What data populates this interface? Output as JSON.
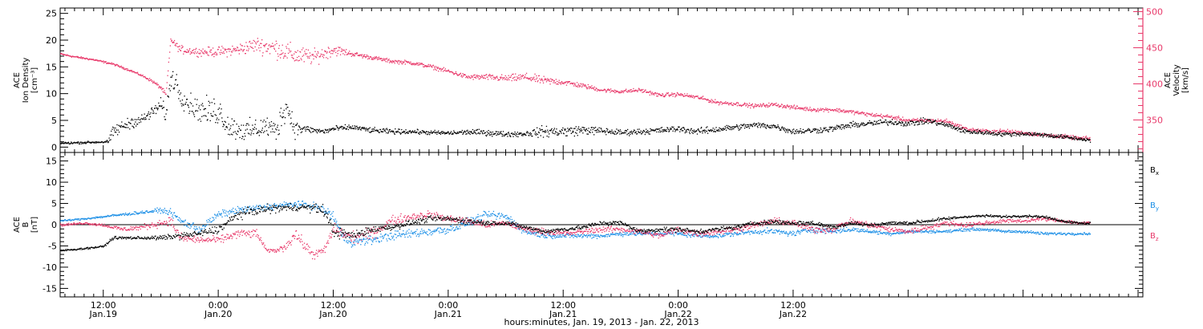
{
  "colors": {
    "density": "#000000",
    "velocity": "#e8396a",
    "bx": "#000000",
    "by": "#1a8ee6",
    "bz": "#e8396a"
  },
  "chart_data": [
    {
      "type": "scatter",
      "panel": "top",
      "ylabel": [
        "ACE",
        "Ion Density",
        "[cm⁻³]"
      ],
      "ylim": [
        -1,
        26
      ],
      "yticks": [
        0,
        5,
        10,
        15,
        20,
        25
      ],
      "ytick_labels": [
        "0",
        "5",
        "10",
        "15",
        "20",
        "25"
      ],
      "y2label": [
        "ACE",
        "Velocity",
        "[km/s]"
      ],
      "y2lim": [
        305,
        505
      ],
      "y2ticks": [
        350,
        400,
        450,
        500
      ],
      "y2tick_labels": [
        "350",
        "400",
        "450",
        "500"
      ],
      "series": [
        {
          "key": "density",
          "axis": "left",
          "x": [
            7.5,
            9,
            11,
            12.5,
            13,
            14,
            15,
            16,
            17,
            18,
            18.5,
            19,
            19.5,
            20,
            21,
            22,
            23,
            24,
            25,
            26,
            27,
            28,
            29,
            30,
            31,
            32,
            33,
            34,
            35,
            36,
            38,
            40,
            42,
            44,
            46,
            48,
            50,
            52,
            54,
            56,
            58,
            60,
            62,
            64,
            66,
            68,
            70,
            72,
            74,
            76,
            78,
            80,
            82,
            84,
            86,
            88,
            90,
            92,
            94,
            96,
            98,
            100,
            102,
            104,
            106,
            108,
            110,
            112,
            114,
            115
          ],
          "y": [
            0.8,
            0.9,
            1.0,
            1.1,
            3.0,
            4.0,
            4.8,
            5.2,
            6.5,
            8.0,
            6.0,
            13.0,
            12.5,
            10.0,
            8.0,
            7.0,
            6.5,
            7.0,
            4.0,
            3.5,
            3.0,
            3.5,
            4.0,
            3.0,
            8.0,
            3.5,
            3.5,
            3.2,
            3.0,
            3.5,
            3.8,
            3.2,
            3.0,
            3.0,
            2.8,
            2.7,
            2.9,
            2.8,
            2.5,
            2.6,
            3.0,
            3.0,
            3.3,
            3.1,
            2.8,
            3.0,
            3.2,
            3.5,
            3.0,
            3.4,
            3.8,
            4.2,
            4.0,
            3.0,
            3.2,
            3.5,
            4.2,
            4.5,
            4.8,
            4.5,
            5.0,
            4.2,
            3.0,
            2.8,
            2.5,
            2.6,
            2.4,
            2.0,
            1.6,
            1.4
          ],
          "spread": [
            0.3,
            0.3,
            0.3,
            0.4,
            2.0,
            1.5,
            1.5,
            1.5,
            1.5,
            2.0,
            2.0,
            3.0,
            3.0,
            3.0,
            3.0,
            3.0,
            4.0,
            4.0,
            3.0,
            3.0,
            3.0,
            3.0,
            3.0,
            3.0,
            4.0,
            2.5,
            1.0,
            0.8,
            0.8,
            0.8,
            0.7,
            0.7,
            0.7,
            0.6,
            0.6,
            0.6,
            0.7,
            0.8,
            0.7,
            0.8,
            1.5,
            1.5,
            1.2,
            1.0,
            0.8,
            0.8,
            0.8,
            0.8,
            0.9,
            0.9,
            0.8,
            0.8,
            0.8,
            0.8,
            0.8,
            0.8,
            0.8,
            0.8,
            0.8,
            0.8,
            0.8,
            0.7,
            0.7,
            0.6,
            0.6,
            0.6,
            0.6,
            0.6,
            0.5,
            0.5
          ]
        },
        {
          "key": "velocity",
          "axis": "right",
          "x": [
            7.5,
            9,
            11,
            13,
            14,
            15,
            16,
            17,
            18,
            18.5,
            19,
            20,
            22,
            24,
            26,
            28,
            30,
            32,
            34,
            36,
            37,
            38,
            40,
            42,
            44,
            46,
            48,
            50,
            52,
            54,
            56,
            58,
            60,
            62,
            64,
            66,
            68,
            70,
            72,
            74,
            76,
            78,
            80,
            82,
            84,
            86,
            88,
            90,
            92,
            94,
            96,
            98,
            100,
            102,
            104,
            106,
            108,
            110,
            112,
            114,
            115
          ],
          "y": [
            442,
            438,
            434,
            428,
            423,
            418,
            412,
            405,
            395,
            385,
            462,
            448,
            445,
            445,
            448,
            455,
            450,
            440,
            438,
            448,
            445,
            442,
            437,
            432,
            430,
            425,
            418,
            410,
            410,
            408,
            410,
            405,
            403,
            398,
            392,
            390,
            392,
            385,
            386,
            382,
            375,
            373,
            370,
            372,
            368,
            365,
            365,
            362,
            358,
            355,
            350,
            350,
            349,
            338,
            335,
            335,
            333,
            330,
            328,
            325,
            325
          ],
          "spread": [
            2,
            2,
            2,
            2,
            2,
            2,
            2,
            3,
            4,
            5,
            5,
            8,
            8,
            10,
            12,
            15,
            20,
            20,
            15,
            12,
            8,
            5,
            4,
            4,
            4,
            4,
            4,
            5,
            6,
            7,
            8,
            8,
            6,
            5,
            4,
            4,
            4,
            4,
            4,
            4,
            4,
            4,
            4,
            4,
            4,
            4,
            4,
            4,
            4,
            4,
            4,
            4,
            4,
            4,
            4,
            4,
            4,
            4,
            4,
            4,
            4
          ]
        }
      ]
    },
    {
      "type": "scatter",
      "panel": "bottom",
      "ylabel": [
        "ACE",
        "B",
        "[nT]"
      ],
      "ylim": [
        -17,
        17
      ],
      "yticks": [
        -15,
        -10,
        -5,
        0,
        5,
        10,
        15
      ],
      "ytick_labels": [
        "-15",
        "-10",
        "-5",
        "0",
        "5",
        "10",
        "15"
      ],
      "zero_line": true,
      "series": [
        {
          "key": "bx",
          "name": "B",
          "sub": "x",
          "x": [
            7.5,
            10,
            12,
            13,
            14,
            16,
            18,
            20,
            22,
            24,
            26,
            28,
            30,
            32,
            33,
            34,
            35,
            36,
            38,
            40,
            42,
            44,
            46,
            48,
            50,
            52,
            54,
            56,
            58,
            60,
            62,
            64,
            66,
            68,
            70,
            72,
            74,
            76,
            78,
            80,
            82,
            84,
            86,
            88,
            90,
            92,
            94,
            96,
            98,
            100,
            102,
            104,
            106,
            108,
            110,
            112,
            114,
            115
          ],
          "y": [
            -6,
            -5.5,
            -5,
            -3,
            -3,
            -3,
            -3,
            -2.5,
            -2,
            -1,
            2.5,
            3.5,
            4.0,
            4.2,
            4.2,
            4.0,
            3.5,
            -1.5,
            -2.5,
            -1.0,
            -0.5,
            0.5,
            1.5,
            1.5,
            1.0,
            0.5,
            0.5,
            -0.5,
            -1.5,
            -1.0,
            -0.5,
            0.5,
            0.5,
            -1.5,
            -1.0,
            -1.0,
            -1.5,
            -1.0,
            -0.5,
            0.5,
            0.8,
            0.5,
            0.5,
            -0.5,
            0.5,
            0.0,
            0.5,
            0.5,
            1.0,
            1.5,
            2.0,
            2.2,
            2.0,
            2.2,
            2.0,
            1.0,
            0.5,
            0.5
          ],
          "spread": [
            0.3,
            0.3,
            0.3,
            0.5,
            0.5,
            0.5,
            0.8,
            1.0,
            1.0,
            1.5,
            1.5,
            1.5,
            1.5,
            1.2,
            1.2,
            1.5,
            2.0,
            2.0,
            1.5,
            1.2,
            1.0,
            1.0,
            1.0,
            1.0,
            1.0,
            0.8,
            0.8,
            0.8,
            0.8,
            0.8,
            0.8,
            0.8,
            0.8,
            0.8,
            0.8,
            0.8,
            0.8,
            0.8,
            0.8,
            0.8,
            0.8,
            0.8,
            0.8,
            0.8,
            0.8,
            0.6,
            0.6,
            0.6,
            0.6,
            0.6,
            0.4,
            0.4,
            0.4,
            0.4,
            0.4,
            0.4,
            0.4,
            0.4
          ]
        },
        {
          "key": "by",
          "name": "B",
          "sub": "y",
          "x": [
            7.5,
            10,
            12,
            14,
            16,
            18,
            19,
            20,
            22,
            24,
            26,
            28,
            30,
            32,
            34,
            35,
            36,
            37,
            38,
            40,
            42,
            44,
            46,
            48,
            50,
            52,
            54,
            56,
            58,
            60,
            62,
            64,
            66,
            68,
            70,
            72,
            74,
            76,
            78,
            80,
            82,
            84,
            86,
            88,
            90,
            92,
            94,
            96,
            98,
            100,
            102,
            104,
            106,
            108,
            110,
            112,
            114,
            115
          ],
          "y": [
            1.0,
            1.5,
            2.0,
            2.5,
            3.0,
            3.5,
            3.0,
            1.0,
            -1.0,
            2.5,
            3.5,
            4.0,
            4.5,
            5.0,
            4.5,
            3.5,
            2.0,
            -3.0,
            -4.0,
            -3.5,
            -2.5,
            -2.0,
            -1.5,
            -1.0,
            0.5,
            2.5,
            2.0,
            -1.5,
            -2.5,
            -2.5,
            -2.5,
            -2.5,
            -2.0,
            -2.0,
            -2.0,
            -2.0,
            -2.5,
            -2.5,
            -2.0,
            -1.5,
            -1.5,
            -2.0,
            -1.0,
            -1.5,
            -1.0,
            -1.5,
            -2.0,
            -1.5,
            -1.5,
            -1.5,
            -1.0,
            -1.0,
            -1.5,
            -1.5,
            -2.0,
            -2.0,
            -2.0,
            -2.0
          ],
          "spread": [
            0.3,
            0.3,
            0.4,
            0.5,
            0.5,
            0.8,
            1.0,
            1.5,
            1.5,
            1.2,
            1.2,
            1.2,
            1.2,
            1.0,
            1.2,
            1.5,
            2.0,
            2.0,
            1.5,
            1.5,
            1.5,
            1.5,
            1.5,
            1.5,
            1.5,
            1.2,
            1.5,
            1.2,
            0.8,
            0.8,
            0.8,
            0.8,
            0.8,
            0.8,
            0.8,
            0.8,
            0.8,
            0.8,
            0.8,
            0.8,
            1.0,
            1.0,
            1.0,
            0.8,
            0.8,
            0.6,
            0.6,
            0.6,
            0.5,
            0.5,
            0.5,
            0.5,
            0.5,
            0.5,
            0.5,
            0.5,
            0.4,
            0.4
          ]
        },
        {
          "key": "bz",
          "name": "B",
          "sub": "z",
          "x": [
            7.5,
            10,
            12,
            14,
            16,
            18,
            19,
            20,
            22,
            24,
            26,
            28,
            29,
            30,
            31,
            32,
            33,
            34,
            35,
            36,
            38,
            40,
            42,
            44,
            46,
            48,
            50,
            52,
            54,
            56,
            58,
            60,
            62,
            64,
            66,
            68,
            70,
            72,
            74,
            76,
            78,
            80,
            82,
            84,
            86,
            88,
            90,
            92,
            94,
            96,
            98,
            100,
            102,
            104,
            106,
            108,
            110,
            112,
            114,
            115
          ],
          "y": [
            0.0,
            0.5,
            0.0,
            -1.0,
            -0.5,
            0.5,
            1.0,
            -3.0,
            -3.5,
            -3.5,
            -2.0,
            -2.0,
            -6.0,
            -6.0,
            -5.0,
            -2.0,
            -5.0,
            -7.0,
            -6.0,
            -1.0,
            -3.0,
            -2.0,
            1.0,
            2.0,
            2.5,
            1.5,
            1.0,
            0.0,
            0.5,
            -1.0,
            -1.5,
            -2.0,
            -1.5,
            -1.0,
            -1.0,
            -1.5,
            -2.5,
            -1.0,
            -2.0,
            -1.5,
            -1.0,
            0.0,
            1.0,
            0.5,
            -1.0,
            -1.0,
            1.0,
            0.0,
            -1.0,
            -1.5,
            -0.5,
            0.5,
            0.0,
            0.5,
            1.0,
            1.0,
            1.5,
            1.0,
            0.5,
            0.5
          ],
          "spread": [
            0.4,
            0.4,
            0.5,
            0.8,
            1.0,
            1.2,
            1.5,
            1.5,
            1.2,
            1.2,
            1.5,
            1.5,
            0.6,
            0.6,
            1.5,
            2.0,
            2.0,
            1.5,
            1.5,
            2.0,
            2.0,
            2.0,
            1.5,
            1.5,
            1.2,
            1.2,
            1.2,
            1.2,
            1.0,
            1.0,
            1.0,
            1.0,
            1.0,
            1.0,
            1.0,
            1.0,
            1.0,
            1.2,
            1.0,
            1.2,
            1.0,
            1.0,
            1.0,
            1.2,
            1.2,
            1.2,
            1.0,
            1.0,
            1.0,
            1.0,
            1.0,
            0.8,
            0.8,
            0.8,
            0.6,
            0.6,
            0.6,
            0.6,
            0.6,
            0.6
          ]
        }
      ]
    }
  ],
  "xaxis": {
    "xlim": [
      7.5,
      120.5
    ],
    "major_ticks": [
      12,
      24,
      36,
      48,
      60,
      72,
      84,
      96,
      108,
      120
    ],
    "tick_labels": [
      {
        "time": "12:00",
        "date": "Jan.19"
      },
      {
        "time": "0:00",
        "date": "Jan.20"
      },
      {
        "time": "12:00",
        "date": "Jan.20"
      },
      {
        "time": "0:00",
        "date": "Jan.21"
      },
      {
        "time": "12:00",
        "date": "Jan.21"
      },
      {
        "time": "0:00",
        "date": "Jan.22"
      },
      {
        "time": "12:00",
        "date": "Jan.22"
      }
    ],
    "label_ticks": [
      12,
      24,
      36,
      48,
      60,
      72,
      84
    ],
    "xlabel": "hours:minutes, Jan. 19, 2013 - Jan. 22, 2013"
  }
}
